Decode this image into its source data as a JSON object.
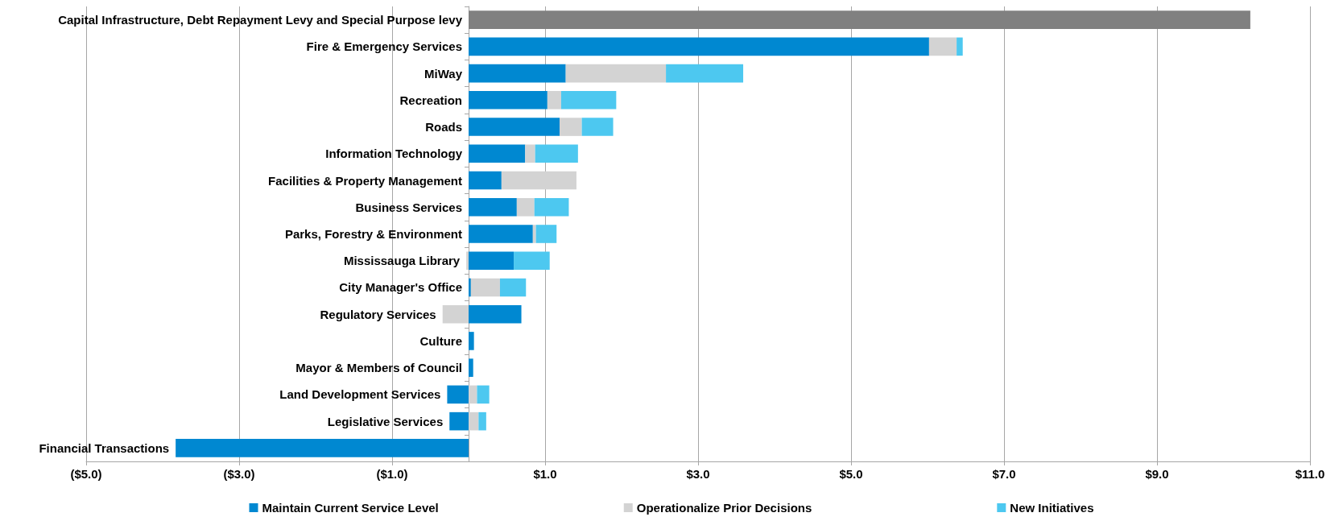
{
  "chart_data": {
    "type": "bar",
    "orientation": "horizontal",
    "stacked": true,
    "categories": [
      "Capital Infrastructure, Debt Repayment Levy and Special Purpose levy",
      "Fire & Emergency Services",
      "MiWay",
      "Recreation",
      "Roads",
      "Information Technology",
      "Facilities & Property Management",
      "Business Services",
      "Parks, Forestry & Environment",
      "Mississauga Library",
      "City Manager's Office",
      "Regulatory Services",
      "Culture",
      "Mayor & Members of Council",
      "Land Development Services",
      "Legislative Services",
      "Financial Transactions"
    ],
    "series": [
      {
        "name": "Maintain Current Service Level",
        "color": "#0088d1",
        "values": [
          null,
          6.02,
          1.27,
          1.03,
          1.19,
          0.74,
          0.43,
          0.63,
          0.84,
          0.59,
          0.03,
          0.69,
          0.07,
          0.06,
          -0.28,
          -0.25,
          -3.83
        ]
      },
      {
        "name": "Operationalize Prior Decisions",
        "color": "#d3d3d3",
        "values": [
          null,
          0.36,
          1.31,
          0.18,
          0.29,
          0.13,
          0.98,
          0.23,
          0.04,
          -0.03,
          0.38,
          -0.34,
          null,
          null,
          0.11,
          0.13,
          null
        ]
      },
      {
        "name": "New Initiatives",
        "color": "#4dc8f0",
        "values": [
          null,
          0.08,
          1.01,
          0.72,
          0.41,
          0.56,
          null,
          0.45,
          0.27,
          0.47,
          0.34,
          null,
          null,
          null,
          0.16,
          0.1,
          null
        ]
      },
      {
        "color": "#808080",
        "values": [
          10.22,
          null,
          null,
          null,
          null,
          null,
          null,
          null,
          null,
          null,
          null,
          null,
          null,
          null,
          null,
          null,
          null
        ]
      }
    ],
    "xlim": [
      -5,
      11
    ],
    "xticks": [
      {
        "value": -5,
        "label": "($5.0)"
      },
      {
        "value": -3,
        "label": "($3.0)"
      },
      {
        "value": -1,
        "label": "($1.0)"
      },
      {
        "value": 1,
        "label": "$1.0"
      },
      {
        "value": 3,
        "label": "$3.0"
      },
      {
        "value": 5,
        "label": "$5.0"
      },
      {
        "value": 7,
        "label": "$7.0"
      },
      {
        "value": 9,
        "label": "$9.0"
      },
      {
        "value": 11,
        "label": "$11.0"
      }
    ],
    "grid": "x",
    "legend": "bottom"
  }
}
